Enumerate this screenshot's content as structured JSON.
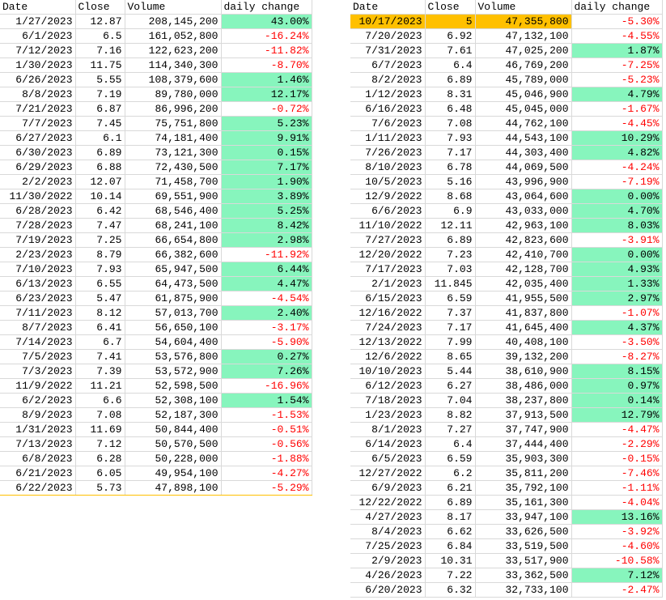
{
  "headers": [
    "Date",
    "Close",
    "Volume",
    "daily change"
  ],
  "colors": {
    "positive_fill": "#87f5bd",
    "negative_text": "#ff0000",
    "highlight": "#ffc000"
  },
  "table_left": [
    [
      "1/27/2023",
      "12.87",
      "208,145,200",
      "43.00%"
    ],
    [
      "6/1/2023",
      "6.5",
      "161,052,800",
      "-16.24%"
    ],
    [
      "7/12/2023",
      "7.16",
      "122,623,200",
      "-11.82%"
    ],
    [
      "1/30/2023",
      "11.75",
      "114,340,300",
      "-8.70%"
    ],
    [
      "6/26/2023",
      "5.55",
      "108,379,600",
      "1.46%"
    ],
    [
      "8/8/2023",
      "7.19",
      "89,780,000",
      "12.17%"
    ],
    [
      "7/21/2023",
      "6.87",
      "86,996,200",
      "-0.72%"
    ],
    [
      "7/7/2023",
      "7.45",
      "75,751,800",
      "5.23%"
    ],
    [
      "6/27/2023",
      "6.1",
      "74,181,400",
      "9.91%"
    ],
    [
      "6/30/2023",
      "6.89",
      "73,121,300",
      "0.15%"
    ],
    [
      "6/29/2023",
      "6.88",
      "72,430,500",
      "7.17%"
    ],
    [
      "2/2/2023",
      "12.07",
      "71,458,700",
      "1.90%"
    ],
    [
      "11/30/2022",
      "10.14",
      "69,551,900",
      "3.89%"
    ],
    [
      "6/28/2023",
      "6.42",
      "68,546,400",
      "5.25%"
    ],
    [
      "7/28/2023",
      "7.47",
      "68,241,100",
      "8.42%"
    ],
    [
      "7/19/2023",
      "7.25",
      "66,654,800",
      "2.98%"
    ],
    [
      "2/23/2023",
      "8.79",
      "66,382,600",
      "-11.92%"
    ],
    [
      "7/10/2023",
      "7.93",
      "65,947,500",
      "6.44%"
    ],
    [
      "6/13/2023",
      "6.55",
      "64,473,500",
      "4.47%"
    ],
    [
      "6/23/2023",
      "5.47",
      "61,875,900",
      "-4.54%"
    ],
    [
      "7/11/2023",
      "8.12",
      "57,013,700",
      "2.40%"
    ],
    [
      "8/7/2023",
      "6.41",
      "56,650,100",
      "-3.17%"
    ],
    [
      "7/14/2023",
      "6.7",
      "54,604,400",
      "-5.90%"
    ],
    [
      "7/5/2023",
      "7.41",
      "53,576,800",
      "0.27%"
    ],
    [
      "7/3/2023",
      "7.39",
      "53,572,900",
      "7.26%"
    ],
    [
      "11/9/2022",
      "11.21",
      "52,598,500",
      "-16.96%"
    ],
    [
      "6/2/2023",
      "6.6",
      "52,308,100",
      "1.54%"
    ],
    [
      "8/9/2023",
      "7.08",
      "52,187,300",
      "-1.53%"
    ],
    [
      "1/31/2023",
      "11.69",
      "50,844,400",
      "-0.51%"
    ],
    [
      "7/13/2023",
      "7.12",
      "50,570,500",
      "-0.56%"
    ],
    [
      "6/8/2023",
      "6.28",
      "50,228,000",
      "-1.88%"
    ],
    [
      "6/21/2023",
      "6.05",
      "49,954,100",
      "-4.27%"
    ],
    [
      "6/22/2023",
      "5.73",
      "47,898,100",
      "-5.29%"
    ]
  ],
  "table_right": [
    [
      "10/17/2023",
      "5",
      "47,355,800",
      "-5.30%"
    ],
    [
      "7/20/2023",
      "6.92",
      "47,132,100",
      "-4.55%"
    ],
    [
      "7/31/2023",
      "7.61",
      "47,025,200",
      "1.87%"
    ],
    [
      "6/7/2023",
      "6.4",
      "46,769,200",
      "-7.25%"
    ],
    [
      "8/2/2023",
      "6.89",
      "45,789,000",
      "-5.23%"
    ],
    [
      "1/12/2023",
      "8.31",
      "45,046,900",
      "4.79%"
    ],
    [
      "6/16/2023",
      "6.48",
      "45,045,000",
      "-1.67%"
    ],
    [
      "7/6/2023",
      "7.08",
      "44,762,100",
      "-4.45%"
    ],
    [
      "1/11/2023",
      "7.93",
      "44,543,100",
      "10.29%"
    ],
    [
      "7/26/2023",
      "7.17",
      "44,303,400",
      "4.82%"
    ],
    [
      "8/10/2023",
      "6.78",
      "44,069,500",
      "-4.24%"
    ],
    [
      "10/5/2023",
      "5.16",
      "43,996,900",
      "-7.19%"
    ],
    [
      "12/9/2022",
      "8.68",
      "43,064,600",
      "0.00%"
    ],
    [
      "6/6/2023",
      "6.9",
      "43,033,000",
      "4.70%"
    ],
    [
      "11/10/2022",
      "12.11",
      "42,963,100",
      "8.03%"
    ],
    [
      "7/27/2023",
      "6.89",
      "42,823,600",
      "-3.91%"
    ],
    [
      "12/20/2022",
      "7.23",
      "42,410,700",
      "0.00%"
    ],
    [
      "7/17/2023",
      "7.03",
      "42,128,700",
      "4.93%"
    ],
    [
      "2/1/2023",
      "11.845",
      "42,035,400",
      "1.33%"
    ],
    [
      "6/15/2023",
      "6.59",
      "41,955,500",
      "2.97%"
    ],
    [
      "12/16/2022",
      "7.37",
      "41,837,800",
      "-1.07%"
    ],
    [
      "7/24/2023",
      "7.17",
      "41,645,400",
      "4.37%"
    ],
    [
      "12/13/2022",
      "7.99",
      "40,408,100",
      "-3.50%"
    ],
    [
      "12/6/2022",
      "8.65",
      "39,132,200",
      "-8.27%"
    ],
    [
      "10/10/2023",
      "5.44",
      "38,610,900",
      "8.15%"
    ],
    [
      "6/12/2023",
      "6.27",
      "38,486,000",
      "0.97%"
    ],
    [
      "7/18/2023",
      "7.04",
      "38,237,800",
      "0.14%"
    ],
    [
      "1/23/2023",
      "8.82",
      "37,913,500",
      "12.79%"
    ],
    [
      "8/1/2023",
      "7.27",
      "37,747,900",
      "-4.47%"
    ],
    [
      "6/14/2023",
      "6.4",
      "37,444,400",
      "-2.29%"
    ],
    [
      "6/5/2023",
      "6.59",
      "35,903,300",
      "-0.15%"
    ],
    [
      "12/27/2022",
      "6.2",
      "35,811,200",
      "-7.46%"
    ],
    [
      "6/9/2023",
      "6.21",
      "35,792,100",
      "-1.11%"
    ],
    [
      "12/22/2022",
      "6.89",
      "35,161,300",
      "-4.04%"
    ],
    [
      "4/27/2023",
      "8.17",
      "33,947,100",
      "13.16%"
    ],
    [
      "8/4/2023",
      "6.62",
      "33,626,500",
      "-3.92%"
    ],
    [
      "7/25/2023",
      "6.84",
      "33,519,500",
      "-4.60%"
    ],
    [
      "2/9/2023",
      "10.31",
      "33,517,900",
      "-10.58%"
    ],
    [
      "4/26/2023",
      "7.22",
      "33,362,500",
      "7.12%"
    ],
    [
      "6/20/2023",
      "6.32",
      "32,733,100",
      "-2.47%"
    ]
  ]
}
